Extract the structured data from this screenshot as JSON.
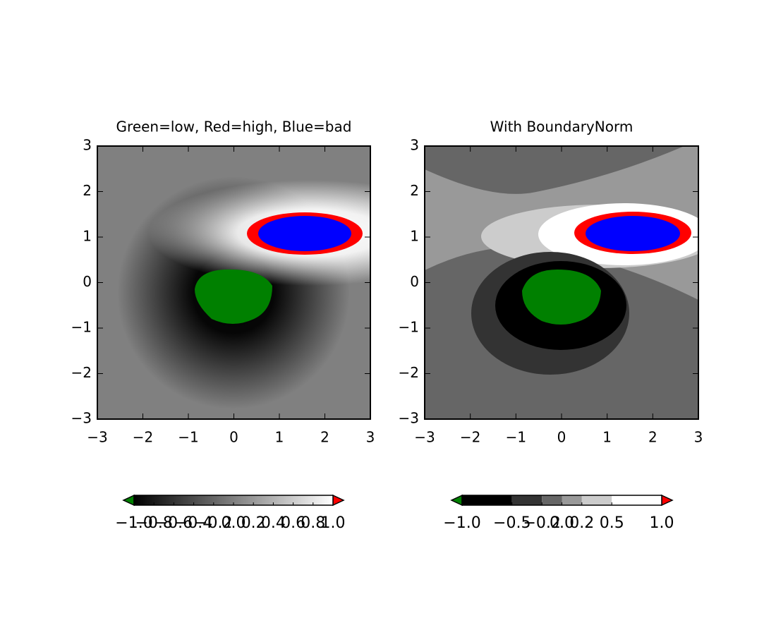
{
  "chart_data": [
    {
      "type": "image",
      "title": "Green=low, Red=high, Blue=bad",
      "xlim": [
        -3,
        3
      ],
      "ylim": [
        -3,
        3
      ],
      "xticks": [
        {
          "value": -3,
          "label": "−3"
        },
        {
          "value": -2,
          "label": "−2"
        },
        {
          "value": -1,
          "label": "−1"
        },
        0,
        1,
        2,
        3
      ],
      "yticks": [
        {
          "value": -3,
          "label": "−3"
        },
        {
          "value": -2,
          "label": "−2"
        },
        {
          "value": -1,
          "label": "−1"
        },
        0,
        1,
        2,
        3
      ],
      "under_color": "#008000",
      "over_color": "#ff0000",
      "bad_color": "#0000ff",
      "colorbar": {
        "cmap": "gray",
        "ticks": [
          {
            "value": -1,
            "label": "−1.0"
          },
          {
            "value": -0.8,
            "label": "−0.8"
          },
          {
            "value": -0.6,
            "label": "−0.6"
          },
          {
            "value": -0.4,
            "label": "−0.4"
          },
          {
            "value": -0.2,
            "label": "−0.2"
          },
          {
            "value": 0,
            "label": "0.0"
          },
          0.2,
          0.4,
          0.6,
          0.8,
          {
            "value": 1,
            "label": "1.0"
          }
        ]
      }
    },
    {
      "type": "image",
      "title": "With BoundaryNorm",
      "xlim": [
        -3,
        3
      ],
      "ylim": [
        -3,
        3
      ],
      "xticks": [
        {
          "value": -3,
          "label": "−3"
        },
        {
          "value": -2,
          "label": "−2"
        },
        {
          "value": -1,
          "label": "−1"
        },
        0,
        1,
        2,
        3
      ],
      "yticks": [
        {
          "value": -3,
          "label": "−3"
        },
        {
          "value": -2,
          "label": "−2"
        },
        {
          "value": -1,
          "label": "−1"
        },
        0,
        1,
        2,
        3
      ],
      "under_color": "#008000",
      "over_color": "#ff0000",
      "bad_color": "#0000ff",
      "colorbar": {
        "colors": [
          "#000000",
          "#333333",
          "#666666",
          "#999999",
          "#cccccc",
          "#ffffff"
        ],
        "ticks": [
          {
            "value": -1,
            "label": "−1.0"
          },
          {
            "value": -0.5,
            "label": "−0.5"
          },
          {
            "value": -0.2,
            "label": "−0.2"
          },
          {
            "value": 0,
            "label": "0.0"
          },
          0.2,
          0.5,
          {
            "value": 1,
            "label": "1.0"
          }
        ]
      }
    }
  ]
}
